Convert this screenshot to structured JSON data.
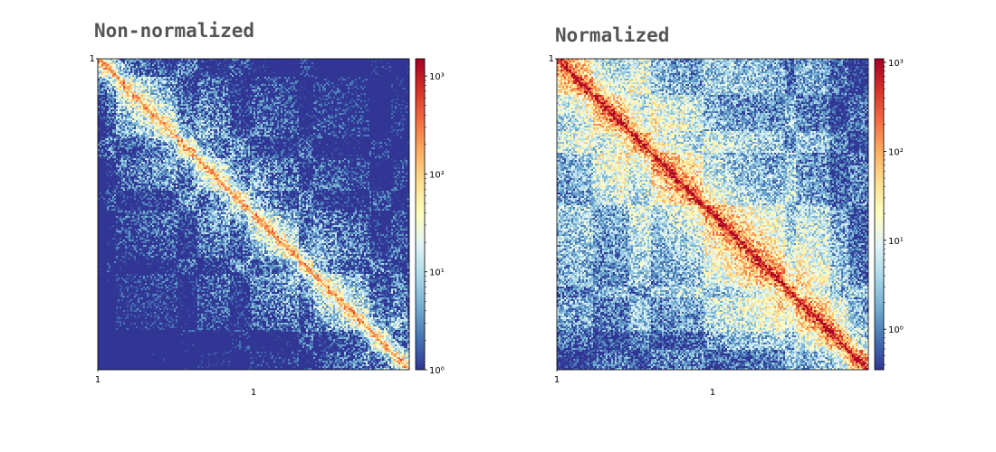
{
  "chart_data": [
    {
      "type": "heatmap",
      "title": "Non-normalized",
      "xlabel": "1",
      "ylabel": "",
      "x_tick_labels": [
        "1"
      ],
      "y_tick_labels": [
        "1"
      ],
      "colorbar": {
        "scale": "log",
        "range": [
          1,
          1500
        ],
        "ticks": [
          {
            "value": 1,
            "label": "10⁰"
          },
          {
            "value": 10,
            "label": "10¹"
          },
          {
            "value": 100,
            "label": "10²"
          },
          {
            "value": 1000,
            "label": "10³"
          }
        ],
        "colormap": "RdYlBu_r",
        "colors": [
          "#313695",
          "#4575b4",
          "#74add1",
          "#abd9e9",
          "#e0f3f8",
          "#ffffbf",
          "#fee090",
          "#fdae61",
          "#f46d43",
          "#d73027",
          "#a50026"
        ]
      },
      "diagonal_peak": 200
    },
    {
      "type": "heatmap",
      "title": "Normalized",
      "xlabel": "1",
      "ylabel": "",
      "x_tick_labels": [
        "1"
      ],
      "y_tick_labels": [
        "1"
      ],
      "colorbar": {
        "scale": "log",
        "range": [
          0.35,
          1100
        ],
        "ticks": [
          {
            "value": 1,
            "label": "10⁰"
          },
          {
            "value": 10,
            "label": "10¹"
          },
          {
            "value": 100,
            "label": "10²"
          },
          {
            "value": 1000,
            "label": "10³"
          }
        ],
        "colormap": "RdYlBu_r",
        "colors": [
          "#313695",
          "#4575b4",
          "#74add1",
          "#abd9e9",
          "#e0f3f8",
          "#ffffbf",
          "#fee090",
          "#fdae61",
          "#f46d43",
          "#d73027",
          "#a50026"
        ]
      },
      "diagonal_peak": 800
    }
  ]
}
